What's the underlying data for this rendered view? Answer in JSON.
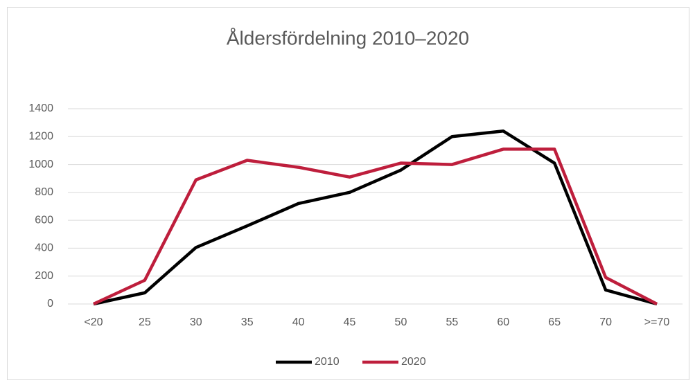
{
  "chart_data": {
    "type": "line",
    "title": "Åldersfördelning 2010–2020",
    "categories": [
      "<20",
      "25",
      "30",
      "35",
      "40",
      "45",
      "50",
      "55",
      "60",
      "65",
      "70",
      ">=70"
    ],
    "series": [
      {
        "name": "2010",
        "color": "#000000",
        "values": [
          0,
          80,
          405,
          560,
          720,
          800,
          960,
          1200,
          1240,
          1010,
          100,
          0
        ]
      },
      {
        "name": "2020",
        "color": "#be1e3c",
        "values": [
          0,
          170,
          890,
          1030,
          980,
          910,
          1010,
          1000,
          1110,
          1110,
          190,
          0
        ]
      }
    ],
    "ylim": [
      0,
      1400
    ],
    "yticks": [
      0,
      200,
      400,
      600,
      800,
      1000,
      1200,
      1400
    ],
    "grid": true,
    "legend": "bottom"
  }
}
